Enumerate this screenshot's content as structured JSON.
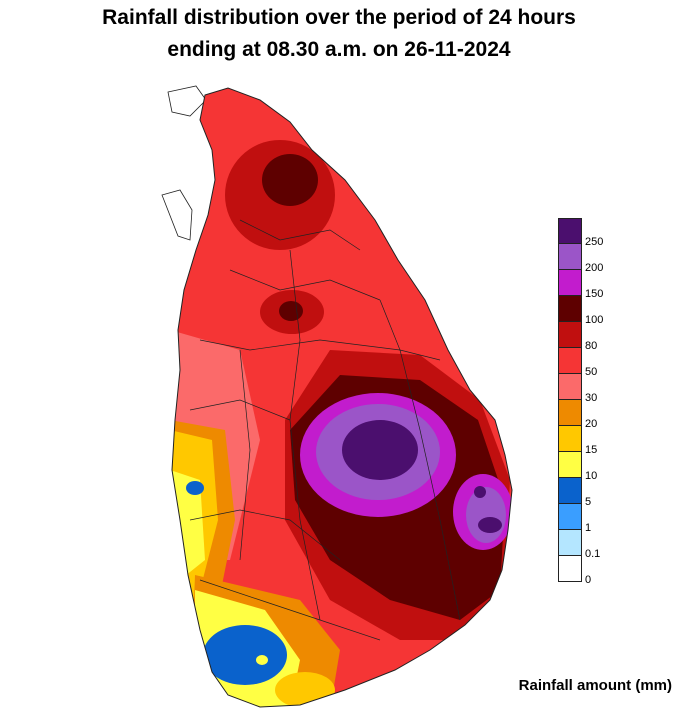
{
  "title": {
    "line1": "Rainfall distribution over the period of 24 hours",
    "line2": "ending at 08.30 a.m. on 26-11-2024"
  },
  "legend": {
    "units_label": "Rainfall amount (mm)",
    "bins": [
      {
        "label": "250",
        "color": "#4b0f6e"
      },
      {
        "label": "200",
        "color": "#9b55c8"
      },
      {
        "label": "150",
        "color": "#c21ccd"
      },
      {
        "label": "100",
        "color": "#5e0000"
      },
      {
        "label": "80",
        "color": "#c00f0f"
      },
      {
        "label": "50",
        "color": "#f53535"
      },
      {
        "label": "30",
        "color": "#fb6a6a"
      },
      {
        "label": "20",
        "color": "#ee8a00"
      },
      {
        "label": "15",
        "color": "#ffc800"
      },
      {
        "label": "10",
        "color": "#ffff44"
      },
      {
        "label": "5",
        "color": "#0a62cc"
      },
      {
        "label": "1",
        "color": "#3a9eff"
      },
      {
        "label": "0.1",
        "color": "#b4e6ff"
      },
      {
        "label": "0",
        "color": "#ffffff"
      }
    ]
  }
}
